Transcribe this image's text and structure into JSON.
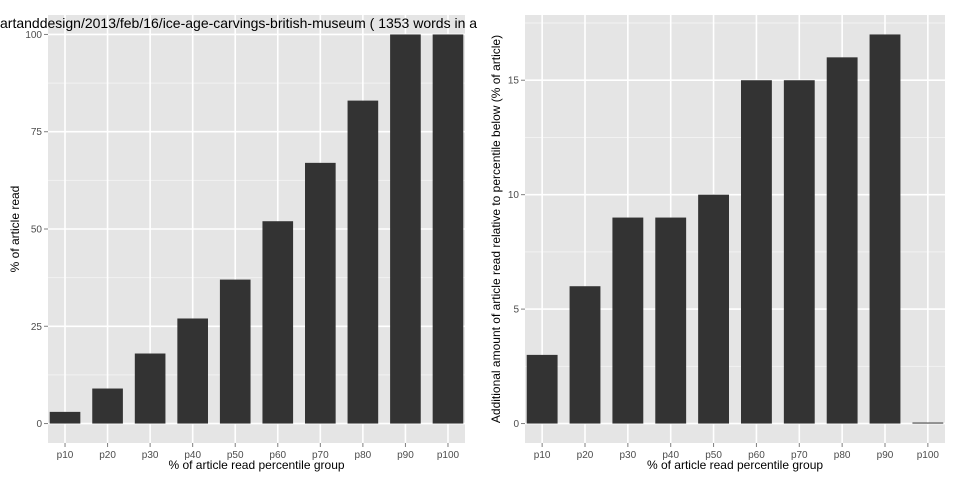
{
  "colors": {
    "panel_background": "#e5e5e5",
    "grid_major": "#ffffff",
    "grid_minor": "#f2f2f2",
    "bar_fill": "#333333",
    "tick_text": "#4d4d4d",
    "tick_mark": "#7f7f7f"
  },
  "chart_data": [
    {
      "type": "bar",
      "title": "artanddesign/2013/feb/16/ice-age-carvings-british-museum ( 1353 words in a",
      "xlabel": "% of article read percentile group",
      "ylabel": "% of article read",
      "categories": [
        "p10",
        "p20",
        "p30",
        "p40",
        "p50",
        "p60",
        "p70",
        "p80",
        "p90",
        "p100"
      ],
      "values": [
        3,
        9,
        18,
        27,
        37,
        52,
        67,
        83,
        100,
        100
      ],
      "ylim": [
        -5,
        105
      ],
      "yticks": [
        0,
        25,
        50,
        75,
        100
      ],
      "grid": true
    },
    {
      "type": "bar",
      "title": "",
      "xlabel": "% of article read percentile group",
      "ylabel": "Additional amount of article read relative to percentile below (% of article)",
      "categories": [
        "p10",
        "p20",
        "p30",
        "p40",
        "p50",
        "p60",
        "p70",
        "p80",
        "p90",
        "p100"
      ],
      "values": [
        3,
        6,
        9,
        9,
        10,
        15,
        15,
        16,
        17,
        0
      ],
      "ylim": [
        -0.85,
        17.85
      ],
      "yticks": [
        0,
        5,
        10,
        15
      ],
      "grid": true
    }
  ]
}
